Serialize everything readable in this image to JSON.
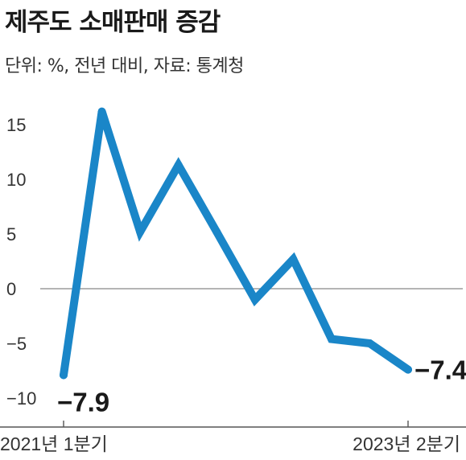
{
  "chart_data": {
    "type": "line",
    "title": "제주도 소매판매 증감",
    "subtitle": "단위: %, 전년 대비, 자료: 통계청",
    "ylim": [
      -11,
      17
    ],
    "yticks": [
      15,
      10,
      5,
      0,
      -5,
      -10
    ],
    "x_labels_shown": [
      "2021년 1분기",
      "2023년 2분기"
    ],
    "series": [
      {
        "values": [
          -7.9,
          16.2,
          5.2,
          11.3,
          5.2,
          -1.0,
          2.7,
          -4.6,
          -5.0,
          -7.4
        ]
      }
    ],
    "annotations": [
      {
        "index": 0,
        "text": "−7.9"
      },
      {
        "index": 9,
        "text": "−7.4"
      }
    ],
    "grid": false,
    "zero_line": true,
    "colors": {
      "line": "#1a86c8",
      "axis": "#555555",
      "zero": "#888888"
    }
  }
}
